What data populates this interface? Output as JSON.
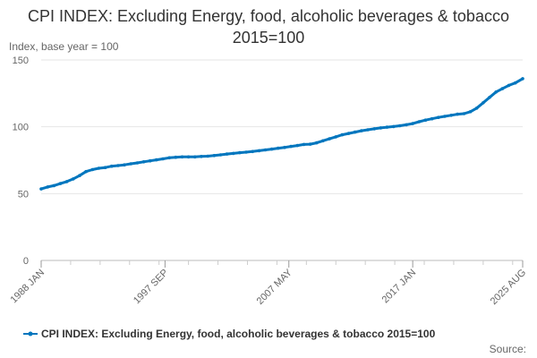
{
  "chart_data": {
    "type": "line",
    "title": "CPI INDEX: Excluding Energy, food, alcoholic beverages & tobacco 2015=100",
    "ylabel": "Index, base year = 100",
    "ylim": [
      0,
      150
    ],
    "yticks": [
      0,
      50,
      100,
      150
    ],
    "xlim": [
      1988.0,
      2025.583
    ],
    "xticks": [
      {
        "label": "1988 JAN",
        "value": 1988.0
      },
      {
        "label": "1997 SEP",
        "value": 1997.667
      },
      {
        "label": "2007 MAY",
        "value": 2007.333
      },
      {
        "label": "2017 JAN",
        "value": 2017.0
      },
      {
        "label": "2025 AUG",
        "value": 2025.583
      }
    ],
    "grid": "horizontal",
    "legend_position": "bottom",
    "series": [
      {
        "name": "CPI INDEX: Excluding Energy, food, alcoholic beverages & tobacco 2015=100",
        "color": "#0076be",
        "points": [
          [
            1988.0,
            53.5
          ],
          [
            1988.5,
            55.0
          ],
          [
            1989.0,
            56.0
          ],
          [
            1989.5,
            57.5
          ],
          [
            1990.0,
            59.0
          ],
          [
            1990.5,
            61.0
          ],
          [
            1991.0,
            63.5
          ],
          [
            1991.5,
            66.5
          ],
          [
            1992.0,
            68.0
          ],
          [
            1992.5,
            69.0
          ],
          [
            1993.0,
            69.5
          ],
          [
            1993.5,
            70.5
          ],
          [
            1994.0,
            71.0
          ],
          [
            1994.5,
            71.5
          ],
          [
            1995.0,
            72.3
          ],
          [
            1995.5,
            73.0
          ],
          [
            1996.0,
            73.8
          ],
          [
            1996.5,
            74.5
          ],
          [
            1997.0,
            75.3
          ],
          [
            1997.5,
            76.0
          ],
          [
            1998.0,
            76.8
          ],
          [
            1998.5,
            77.2
          ],
          [
            1999.0,
            77.5
          ],
          [
            1999.5,
            77.5
          ],
          [
            2000.0,
            77.5
          ],
          [
            2000.5,
            77.8
          ],
          [
            2001.0,
            78.0
          ],
          [
            2001.5,
            78.5
          ],
          [
            2002.0,
            79.0
          ],
          [
            2002.5,
            79.6
          ],
          [
            2003.0,
            80.1
          ],
          [
            2003.5,
            80.6
          ],
          [
            2004.0,
            81.0
          ],
          [
            2004.5,
            81.5
          ],
          [
            2005.0,
            82.1
          ],
          [
            2005.5,
            82.7
          ],
          [
            2006.0,
            83.3
          ],
          [
            2006.5,
            84.0
          ],
          [
            2007.0,
            84.6
          ],
          [
            2007.5,
            85.3
          ],
          [
            2008.0,
            86.0
          ],
          [
            2008.5,
            86.8
          ],
          [
            2009.0,
            87.0
          ],
          [
            2009.5,
            88.0
          ],
          [
            2010.0,
            89.5
          ],
          [
            2010.5,
            91.0
          ],
          [
            2011.0,
            92.5
          ],
          [
            2011.5,
            94.0
          ],
          [
            2012.0,
            95.0
          ],
          [
            2012.5,
            96.0
          ],
          [
            2013.0,
            97.0
          ],
          [
            2013.5,
            97.8
          ],
          [
            2014.0,
            98.5
          ],
          [
            2014.5,
            99.2
          ],
          [
            2015.0,
            99.7
          ],
          [
            2015.5,
            100.2
          ],
          [
            2016.0,
            100.8
          ],
          [
            2016.5,
            101.5
          ],
          [
            2017.0,
            102.4
          ],
          [
            2017.5,
            103.8
          ],
          [
            2018.0,
            105.0
          ],
          [
            2018.5,
            106.0
          ],
          [
            2019.0,
            107.0
          ],
          [
            2019.5,
            107.8
          ],
          [
            2020.0,
            108.6
          ],
          [
            2020.5,
            109.4
          ],
          [
            2021.0,
            109.8
          ],
          [
            2021.5,
            111.3
          ],
          [
            2022.0,
            114.0
          ],
          [
            2022.5,
            118.0
          ],
          [
            2023.0,
            122.0
          ],
          [
            2023.5,
            126.0
          ],
          [
            2024.0,
            128.5
          ],
          [
            2024.5,
            131.0
          ],
          [
            2025.0,
            132.8
          ],
          [
            2025.583,
            136.0
          ]
        ]
      }
    ]
  },
  "source_label": "Source:"
}
